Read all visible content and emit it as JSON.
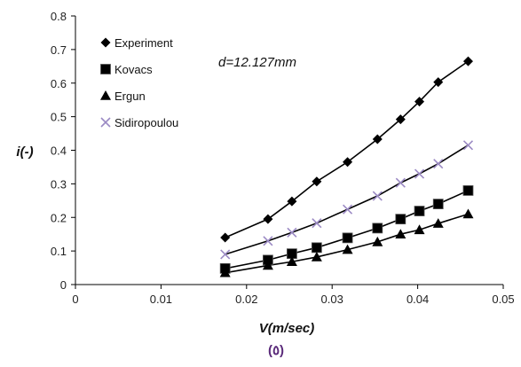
{
  "chart_data": {
    "type": "scatter",
    "xlabel": "V(m/sec)",
    "ylabel": "i(-)",
    "annotation": "d=12.127mm",
    "caption": "(٥)",
    "xlim": [
      0,
      0.05
    ],
    "ylim": [
      0,
      0.8
    ],
    "x_ticks": [
      "0",
      "0.01",
      "0.02",
      "0.03",
      "0.04",
      "0.05"
    ],
    "y_ticks": [
      "0",
      "0.1",
      "0.2",
      "0.3",
      "0.4",
      "0.5",
      "0.6",
      "0.7",
      "0.8"
    ],
    "grid": false,
    "legend_position": "top-left",
    "x": [
      0.0175,
      0.0225,
      0.0253,
      0.0282,
      0.0318,
      0.0353,
      0.038,
      0.0402,
      0.0424,
      0.0459
    ],
    "series": [
      {
        "name": "Experiment",
        "marker": "diamond",
        "color": "#000000",
        "values": [
          0.14,
          0.195,
          0.248,
          0.307,
          0.365,
          0.433,
          0.492,
          0.545,
          0.603,
          0.665
        ]
      },
      {
        "name": "Kovacs",
        "marker": "square",
        "color": "#000000",
        "values": [
          0.048,
          0.073,
          0.092,
          0.11,
          0.139,
          0.168,
          0.195,
          0.219,
          0.24,
          0.28
        ]
      },
      {
        "name": "Ergun",
        "marker": "triangle",
        "color": "#000000",
        "values": [
          0.035,
          0.057,
          0.068,
          0.082,
          0.104,
          0.127,
          0.15,
          0.163,
          0.182,
          0.21
        ]
      },
      {
        "name": "Sidiropoulou",
        "marker": "x",
        "color": "#9b8ac4",
        "values": [
          0.09,
          0.13,
          0.155,
          0.183,
          0.224,
          0.264,
          0.303,
          0.33,
          0.36,
          0.415
        ]
      }
    ]
  }
}
